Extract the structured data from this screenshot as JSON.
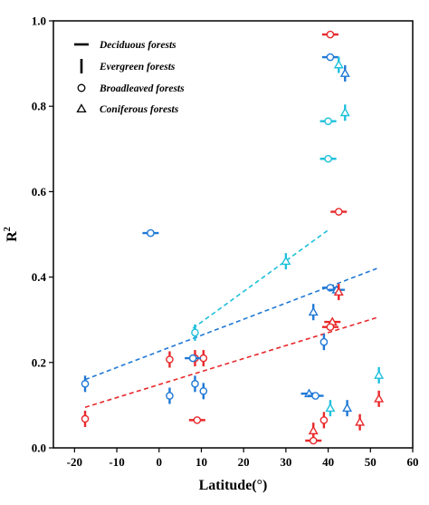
{
  "chart_data": {
    "type": "scatter",
    "xlabel": "Latitude(°)",
    "ylabel_main": "R",
    "ylabel_sup": "2",
    "xlim": [
      -25,
      60
    ],
    "ylim": [
      0.0,
      1.0
    ],
    "xticks": [
      -20,
      -10,
      0,
      10,
      20,
      30,
      40,
      50,
      60
    ],
    "xtick_labels": [
      "-20",
      "-10",
      "0",
      "10",
      "20",
      "30",
      "40",
      "50",
      "60"
    ],
    "yticks": [
      0.0,
      0.2,
      0.4,
      0.6,
      0.8,
      1.0
    ],
    "ytick_labels": [
      "0.0",
      "0.2",
      "0.4",
      "0.6",
      "0.8",
      "1.0"
    ],
    "grid": false,
    "legend_position": "top-left",
    "legend": [
      {
        "label": "Deciduous forests",
        "symbol": "hbar"
      },
      {
        "label": "Evergreen forests",
        "symbol": "vbar"
      },
      {
        "label": "Broadleaved forests",
        "symbol": "circle"
      },
      {
        "label": "Coniferous forests",
        "symbol": "triangle"
      }
    ],
    "colors": {
      "red": "#e8282b",
      "blue": "#1f78d6",
      "cyan": "#1ec0dc"
    },
    "points": [
      {
        "x": 40.5,
        "y": 0.968,
        "shape": "circle",
        "bar": "h",
        "color": "red"
      },
      {
        "x": 40.5,
        "y": 0.915,
        "shape": "circle",
        "bar": "h",
        "color": "blue"
      },
      {
        "x": 42.5,
        "y": 0.897,
        "shape": "triangle",
        "bar": "v",
        "color": "cyan"
      },
      {
        "x": 44.0,
        "y": 0.877,
        "shape": "triangle",
        "bar": "v",
        "color": "blue"
      },
      {
        "x": 44.0,
        "y": 0.785,
        "shape": "triangle",
        "bar": "v",
        "color": "cyan"
      },
      {
        "x": 40.0,
        "y": 0.765,
        "shape": "circle",
        "bar": "h",
        "color": "cyan"
      },
      {
        "x": 40.0,
        "y": 0.677,
        "shape": "circle",
        "bar": "h",
        "color": "cyan"
      },
      {
        "x": 42.5,
        "y": 0.553,
        "shape": "circle",
        "bar": "h",
        "color": "red"
      },
      {
        "x": -2.0,
        "y": 0.503,
        "shape": "circle",
        "bar": "h",
        "color": "blue"
      },
      {
        "x": 30.0,
        "y": 0.437,
        "shape": "triangle",
        "bar": "v",
        "color": "cyan"
      },
      {
        "x": 40.5,
        "y": 0.375,
        "shape": "circle",
        "bar": "h",
        "color": "blue"
      },
      {
        "x": 42.0,
        "y": 0.37,
        "shape": "triangle",
        "bar": "h",
        "color": "blue"
      },
      {
        "x": 42.5,
        "y": 0.365,
        "shape": "triangle",
        "bar": "v",
        "color": "red"
      },
      {
        "x": 36.5,
        "y": 0.318,
        "shape": "triangle",
        "bar": "v",
        "color": "blue"
      },
      {
        "x": 41.0,
        "y": 0.295,
        "shape": "triangle",
        "bar": "h",
        "color": "red"
      },
      {
        "x": 40.5,
        "y": 0.283,
        "shape": "circle",
        "bar": "h",
        "color": "red"
      },
      {
        "x": 8.5,
        "y": 0.27,
        "shape": "circle",
        "bar": "v",
        "color": "cyan"
      },
      {
        "x": 39.0,
        "y": 0.248,
        "shape": "circle",
        "bar": "v",
        "color": "blue"
      },
      {
        "x": 2.5,
        "y": 0.207,
        "shape": "circle",
        "bar": "v",
        "color": "red"
      },
      {
        "x": 8.5,
        "y": 0.21,
        "shape": "circle",
        "bar": "v",
        "color": "red"
      },
      {
        "x": 10.5,
        "y": 0.21,
        "shape": "circle",
        "bar": "v",
        "color": "red"
      },
      {
        "x": 8.0,
        "y": 0.21,
        "shape": "circle",
        "bar": "h",
        "color": "blue"
      },
      {
        "x": -17.5,
        "y": 0.15,
        "shape": "circle",
        "bar": "v",
        "color": "blue"
      },
      {
        "x": 8.5,
        "y": 0.15,
        "shape": "circle",
        "bar": "v",
        "color": "blue"
      },
      {
        "x": 10.5,
        "y": 0.133,
        "shape": "circle",
        "bar": "v",
        "color": "blue"
      },
      {
        "x": 2.5,
        "y": 0.122,
        "shape": "circle",
        "bar": "v",
        "color": "blue"
      },
      {
        "x": 35.5,
        "y": 0.127,
        "shape": "triangle",
        "bar": "h",
        "color": "blue"
      },
      {
        "x": 37.0,
        "y": 0.122,
        "shape": "circle",
        "bar": "h",
        "color": "blue"
      },
      {
        "x": 52.0,
        "y": 0.17,
        "shape": "triangle",
        "bar": "v",
        "color": "cyan"
      },
      {
        "x": 52.0,
        "y": 0.115,
        "shape": "triangle",
        "bar": "v",
        "color": "red"
      },
      {
        "x": 40.5,
        "y": 0.093,
        "shape": "triangle",
        "bar": "v",
        "color": "cyan"
      },
      {
        "x": 44.5,
        "y": 0.093,
        "shape": "triangle",
        "bar": "v",
        "color": "blue"
      },
      {
        "x": 39.0,
        "y": 0.065,
        "shape": "circle",
        "bar": "v",
        "color": "red"
      },
      {
        "x": 47.5,
        "y": 0.06,
        "shape": "triangle",
        "bar": "v",
        "color": "red"
      },
      {
        "x": -17.5,
        "y": 0.068,
        "shape": "circle",
        "bar": "v",
        "color": "red"
      },
      {
        "x": 9.0,
        "y": 0.065,
        "shape": "circle",
        "bar": "h",
        "color": "red"
      },
      {
        "x": 36.5,
        "y": 0.04,
        "shape": "triangle",
        "bar": "v",
        "color": "red"
      },
      {
        "x": 36.5,
        "y": 0.017,
        "shape": "circle",
        "bar": "h",
        "color": "red"
      }
    ],
    "fit_lines": [
      {
        "color": "cyan",
        "x": [
          8,
          40
        ],
        "y": [
          0.28,
          0.51
        ]
      },
      {
        "color": "blue",
        "x": [
          -17.5,
          51.5
        ],
        "y": [
          0.16,
          0.42
        ]
      },
      {
        "color": "red",
        "x": [
          -17.5,
          51.5
        ],
        "y": [
          0.095,
          0.305
        ]
      }
    ]
  }
}
